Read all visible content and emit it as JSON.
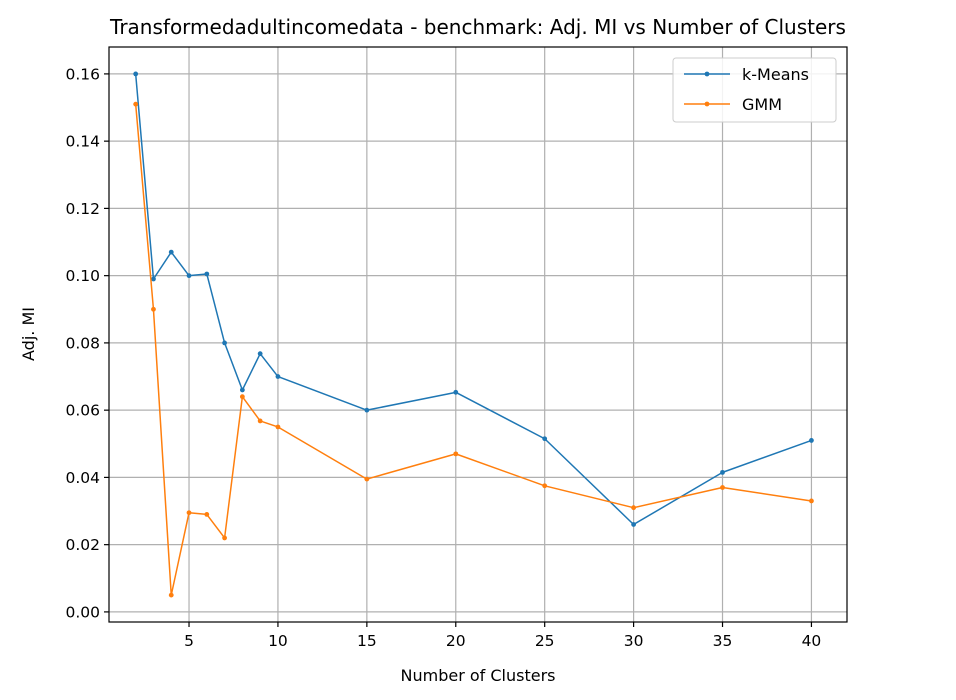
{
  "chart_data": {
    "type": "line",
    "title": "Transformedadultincomedata - benchmark: Adj. MI vs Number of Clusters",
    "xlabel": "Number of Clusters",
    "ylabel": "Adj. MI",
    "xlim": [
      0.5,
      42
    ],
    "ylim": [
      -0.003,
      0.168
    ],
    "xticks": [
      5,
      10,
      15,
      20,
      25,
      30,
      35,
      40
    ],
    "yticks": [
      0.0,
      0.02,
      0.04,
      0.06,
      0.08,
      0.1,
      0.12,
      0.14,
      0.16
    ],
    "ytick_labels": [
      "0.00",
      "0.02",
      "0.04",
      "0.06",
      "0.08",
      "0.10",
      "0.12",
      "0.14",
      "0.16"
    ],
    "grid": true,
    "legend_position": "top-right",
    "x": [
      2,
      3,
      4,
      5,
      6,
      7,
      8,
      9,
      10,
      15,
      20,
      25,
      30,
      35,
      40
    ],
    "series": [
      {
        "name": "k-Means",
        "color": "#1f77b4",
        "values": [
          0.16,
          0.099,
          0.107,
          0.1,
          0.1005,
          0.08,
          0.066,
          0.0768,
          0.07,
          0.06,
          0.0653,
          0.0515,
          0.026,
          0.0415,
          0.051
        ]
      },
      {
        "name": "GMM",
        "color": "#ff7f0e",
        "values": [
          0.151,
          0.09,
          0.005,
          0.0295,
          0.029,
          0.022,
          0.064,
          0.0568,
          0.055,
          0.0395,
          0.047,
          0.0375,
          0.031,
          0.037,
          0.033
        ]
      }
    ]
  }
}
